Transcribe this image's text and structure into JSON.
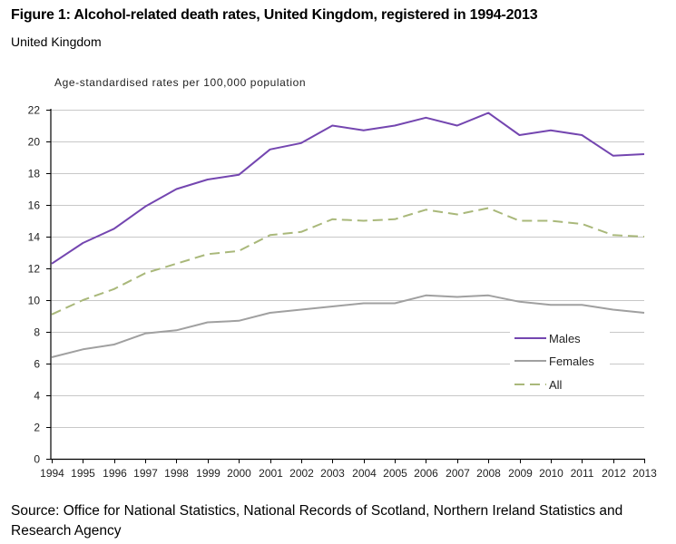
{
  "title": "Figure 1: Alcohol-related death rates, United Kingdom, registered in 1994-2013",
  "subtitle": "United Kingdom",
  "source": "Source: Office for National Statistics, National Records of Scotland, Northern Ireland Statistics and Research Agency",
  "chart_data": {
    "type": "line",
    "title": "Figure 1: Alcohol-related death rates, United Kingdom, registered in 1994-2013",
    "subtitle": "United Kingdom",
    "xlabel": "",
    "ylabel": "Age-standardised rates per 100,000 population",
    "x": [
      "1994",
      "1995",
      "1996",
      "1997",
      "1998",
      "1999",
      "2000",
      "2001",
      "2002",
      "2003",
      "2004",
      "2005",
      "2006",
      "2007",
      "2008",
      "2009",
      "2010",
      "2011",
      "2012",
      "2013"
    ],
    "ylim": [
      0,
      22
    ],
    "yticks": [
      0,
      2,
      4,
      6,
      8,
      10,
      12,
      14,
      16,
      18,
      20,
      22
    ],
    "grid": true,
    "legend_position": "bottom-right",
    "series": [
      {
        "name": "Males",
        "color": "#7446b0",
        "dash": "solid",
        "values": [
          12.3,
          13.6,
          14.5,
          15.9,
          17.0,
          17.6,
          17.9,
          19.5,
          19.9,
          21.0,
          20.7,
          21.0,
          21.5,
          21.0,
          21.8,
          20.4,
          20.7,
          20.4,
          19.1,
          19.2
        ]
      },
      {
        "name": "Females",
        "color": "#a0a0a0",
        "dash": "solid",
        "values": [
          6.4,
          6.9,
          7.2,
          7.9,
          8.1,
          8.6,
          8.7,
          9.2,
          9.4,
          9.6,
          9.8,
          9.8,
          10.3,
          10.2,
          10.3,
          9.9,
          9.7,
          9.7,
          9.4,
          9.2
        ]
      },
      {
        "name": "All",
        "color": "#a9b87a",
        "dash": "dashed",
        "values": [
          9.1,
          10.0,
          10.7,
          11.7,
          12.3,
          12.9,
          13.1,
          14.1,
          14.3,
          15.1,
          15.0,
          15.1,
          15.7,
          15.4,
          15.8,
          15.0,
          15.0,
          14.8,
          14.1,
          14.0
        ]
      }
    ]
  }
}
